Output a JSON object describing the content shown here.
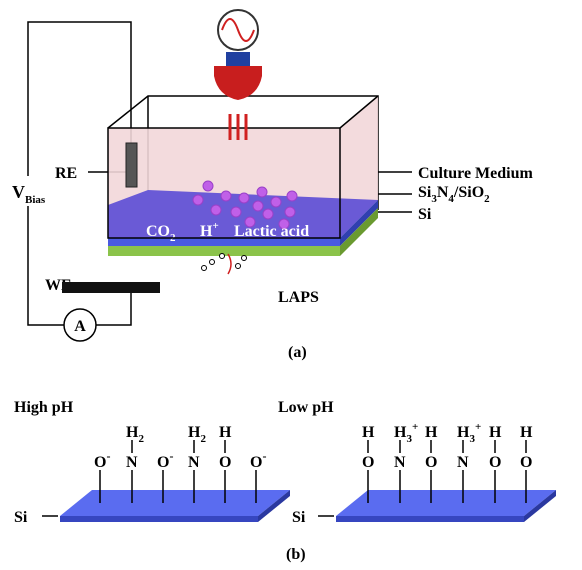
{
  "part_a": {
    "v_bias": {
      "main": "V",
      "sub": "Bias"
    },
    "re": "RE",
    "we": "WE",
    "ammeter": "A",
    "co2": {
      "main": "CO",
      "sub": "2"
    },
    "h_plus": {
      "main": "H",
      "sup": "+"
    },
    "lactic_acid": "Lactic acid",
    "culture_medium": "Culture Medium",
    "insulator": {
      "a": "Si",
      "a_sub": "3",
      "b": "N",
      "b_sub": "4",
      "c": "/SiO",
      "c_sub": "2"
    },
    "si": "Si",
    "laps": "LAPS",
    "caption": "(a)"
  },
  "part_b": {
    "high_ph": {
      "title": "High pH",
      "substrate": "Si",
      "groups": [
        {
          "atom": "O",
          "charge": "-"
        },
        {
          "atom": "N",
          "top": {
            "main": "H",
            "sub": "2"
          }
        },
        {
          "atom": "O",
          "charge": "-"
        },
        {
          "atom": "N",
          "top": {
            "main": "H",
            "sub": "2"
          }
        },
        {
          "atom": "O",
          "top": {
            "main": "H"
          }
        },
        {
          "atom": "O",
          "charge": "-"
        }
      ]
    },
    "low_ph": {
      "title": "Low pH",
      "substrate": "Si",
      "groups": [
        {
          "atom": "O",
          "top": {
            "main": "H"
          }
        },
        {
          "atom": "N",
          "top": {
            "main": "H",
            "sub": "3",
            "sup": "+"
          }
        },
        {
          "atom": "O",
          "top": {
            "main": "H"
          }
        },
        {
          "atom": "N",
          "top": {
            "main": "H",
            "sub": "3",
            "sup": "+"
          }
        },
        {
          "atom": "O",
          "top": {
            "main": "H"
          }
        },
        {
          "atom": "O",
          "top": {
            "main": "H"
          }
        }
      ]
    },
    "caption": "(b)"
  }
}
